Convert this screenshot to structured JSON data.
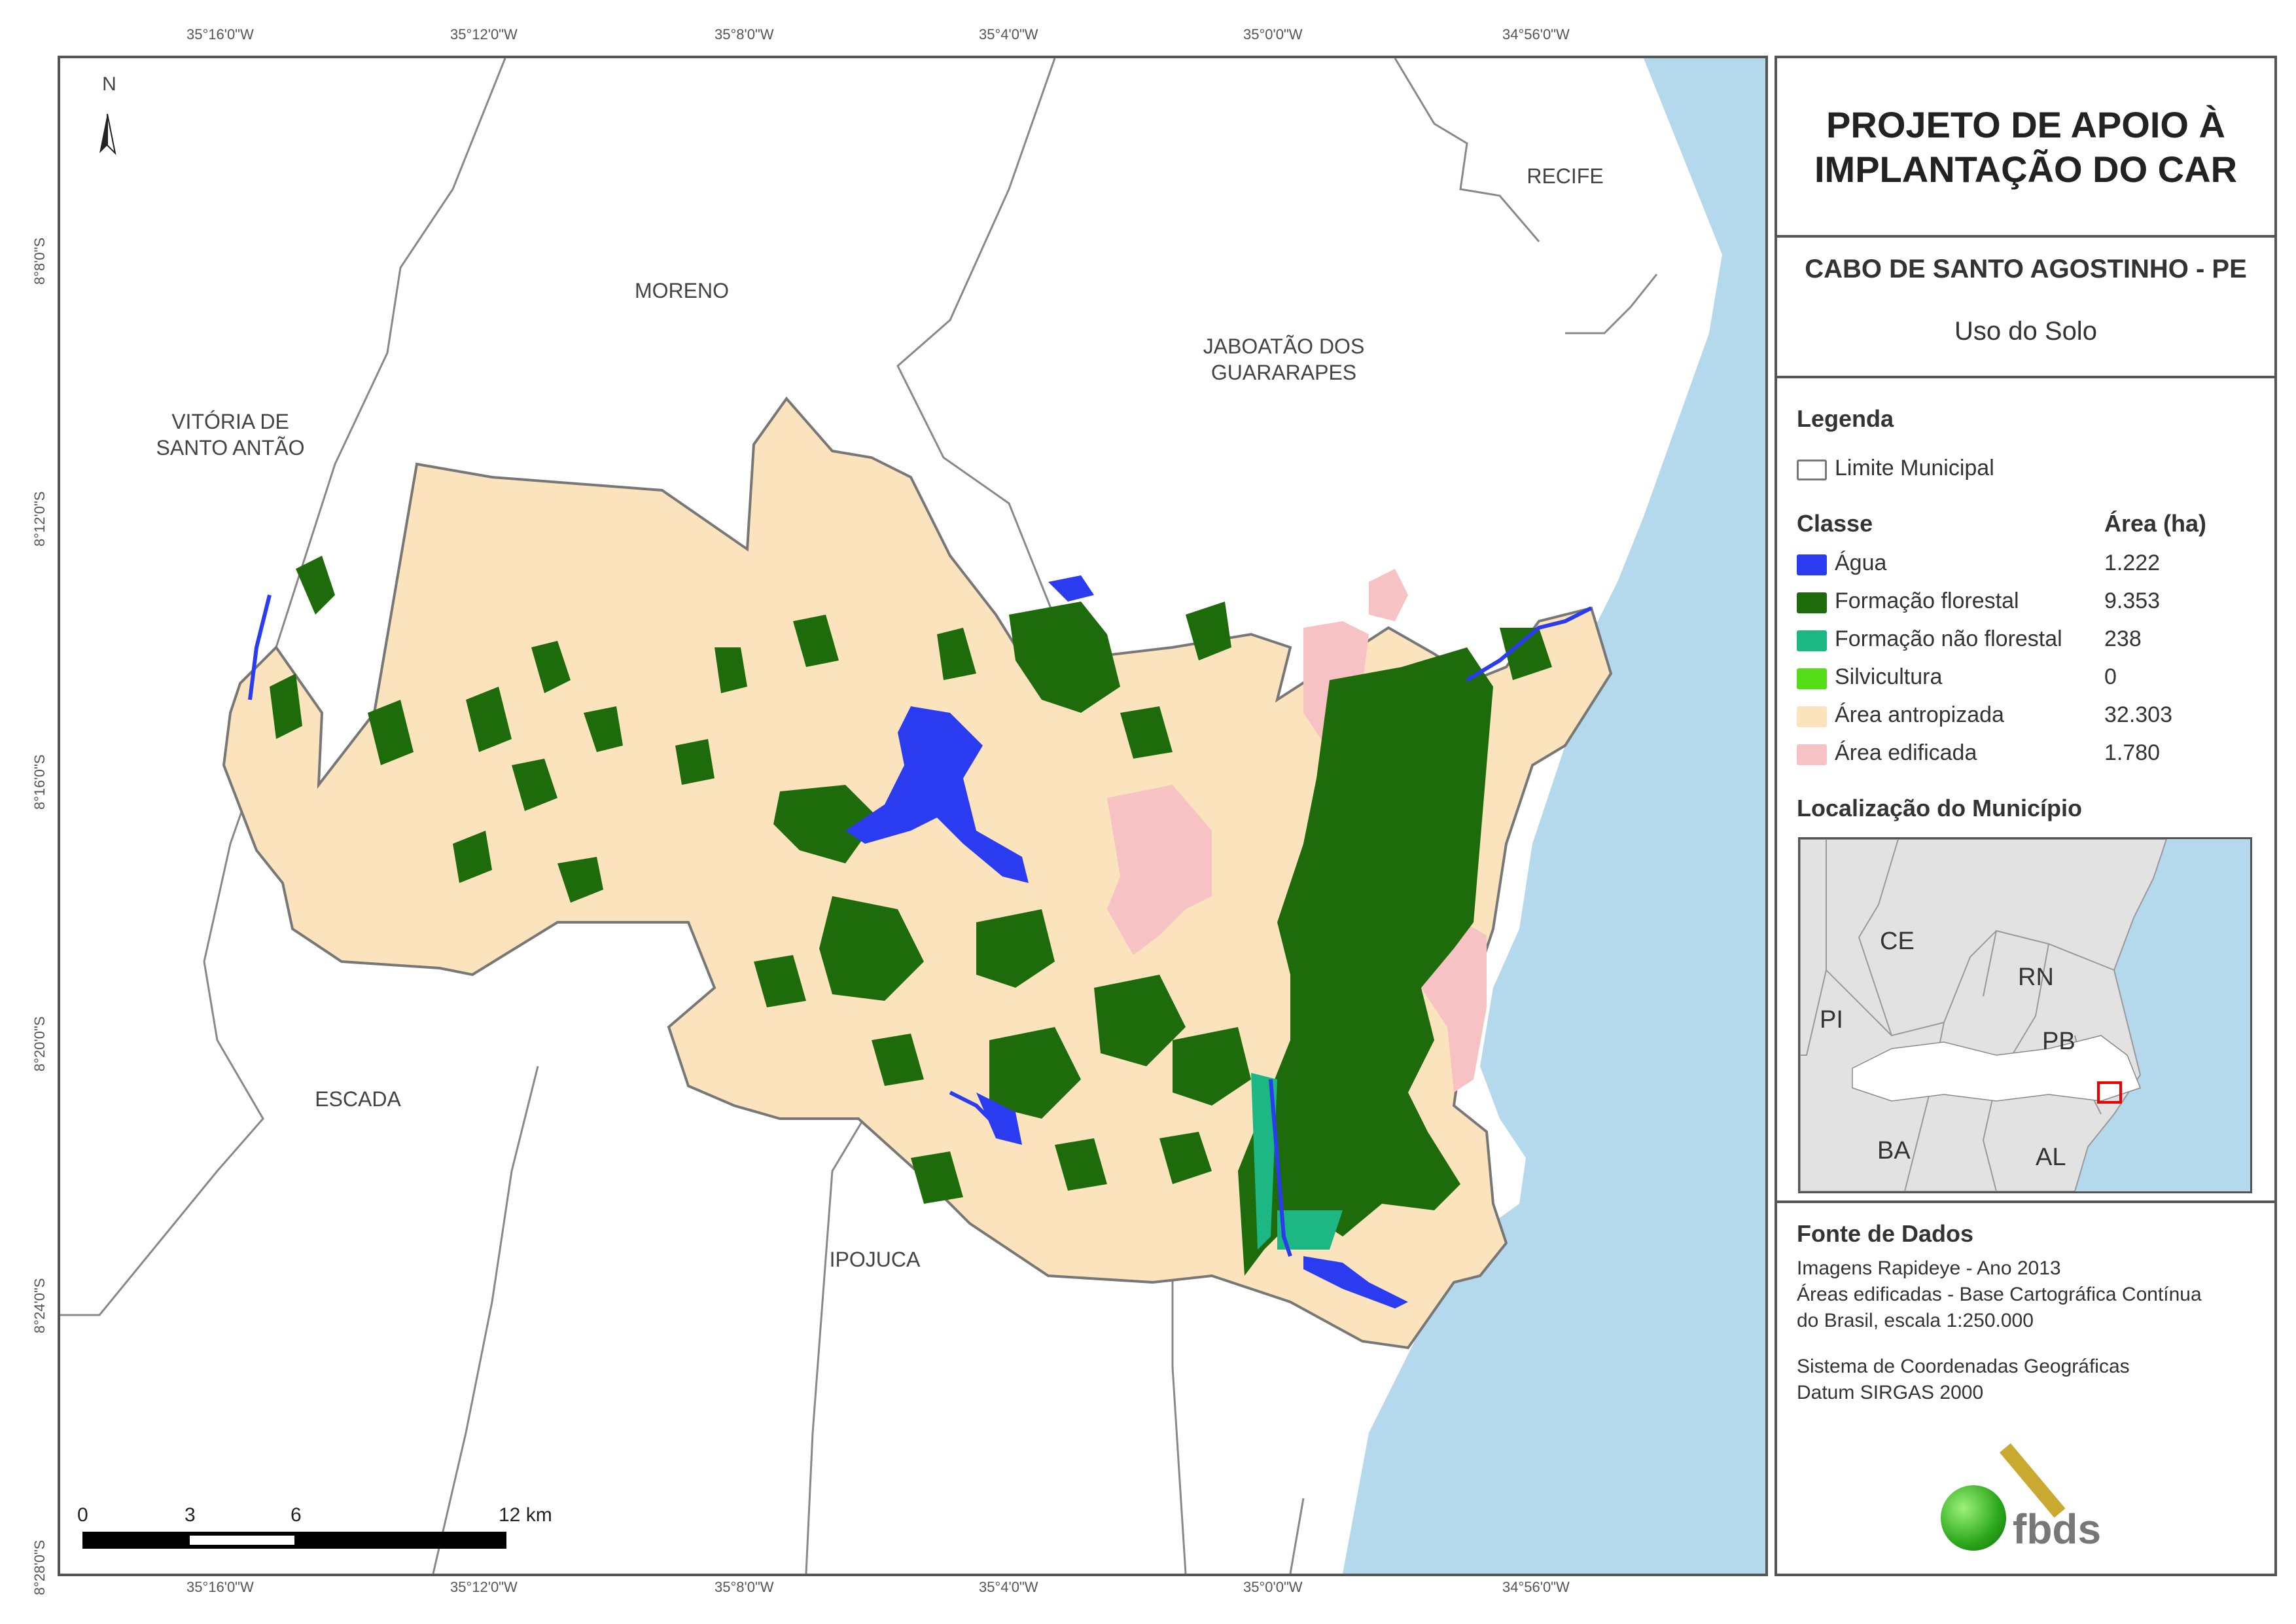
{
  "map": {
    "top_lon_labels": [
      "35°16'0\"W",
      "35°12'0\"W",
      "35°8'0\"W",
      "35°4'0\"W",
      "35°0'0\"W",
      "34°56'0\"W"
    ],
    "bottom_lon_labels": [
      "35°16'0\"W",
      "35°12'0\"W",
      "35°8'0\"W",
      "35°4'0\"W",
      "35°0'0\"W",
      "34°56'0\"W"
    ],
    "lat_labels": [
      "8°8'0\"S",
      "8°12'0\"S",
      "8°16'0\"S",
      "8°20'0\"S",
      "8°24'0\"S",
      "8°28'0\"S"
    ],
    "north_arrow": "N",
    "place_labels": {
      "recife": "RECIFE",
      "moreno": "MORENO",
      "jaboatao_1": "JABOATÃO DOS",
      "jaboatao_2": "GUARARAPES",
      "vitoria_1": "VITÓRIA DE",
      "vitoria_2": "SANTO ANTÃO",
      "escada": "ESCADA",
      "ipojuca": "IPOJUCA"
    },
    "scale": {
      "ticks": [
        "0",
        "3",
        "6",
        "12 km"
      ]
    },
    "colors": {
      "sea": "#b5d9ec",
      "agua": "#2b3bf0",
      "formacao_florestal": "#1e6b0b",
      "formacao_nao_florestal": "#1db784",
      "silvicultura": "#55dd1a",
      "area_antropizada": "#fbe4bd",
      "area_edificada": "#f7c2c4",
      "border": "#888888"
    }
  },
  "panel": {
    "title_line1": "PROJETO DE APOIO À",
    "title_line2": "IMPLANTAÇÃO DO CAR",
    "municipality": "CABO DE SANTO AGOSTINHO - PE",
    "theme": "Uso do Solo",
    "legend_title": "Legenda",
    "limit_label": "Limite Municipal",
    "class_header": "Classe",
    "area_header": "Área (ha)",
    "classes": [
      {
        "label": "Água",
        "area": "1.222",
        "color": "#2b3bf0"
      },
      {
        "label": "Formação florestal",
        "area": "9.353",
        "color": "#1e6b0b"
      },
      {
        "label": "Formação não florestal",
        "area": "238",
        "color": "#1db784"
      },
      {
        "label": "Silvicultura",
        "area": "0",
        "color": "#55dd1a"
      },
      {
        "label": "Área antropizada",
        "area": "32.303",
        "color": "#fbe4bd"
      },
      {
        "label": "Área edificada",
        "area": "1.780",
        "color": "#f7c2c4"
      }
    ],
    "location_title": "Localização do Município",
    "inset_labels": {
      "ce": "CE",
      "rn": "RN",
      "pi": "PI",
      "pb": "PB",
      "ba": "BA",
      "al": "AL"
    },
    "source_title": "Fonte de Dados",
    "source_lines": [
      "Imagens Rapideye - Ano 2013",
      "Áreas edificadas - Base Cartográfica Contínua",
      "do Brasil, escala 1:250.000"
    ],
    "coord_lines": [
      "Sistema de Coordenadas Geográficas",
      "Datum SIRGAS 2000"
    ],
    "logo_text": "fbds"
  }
}
